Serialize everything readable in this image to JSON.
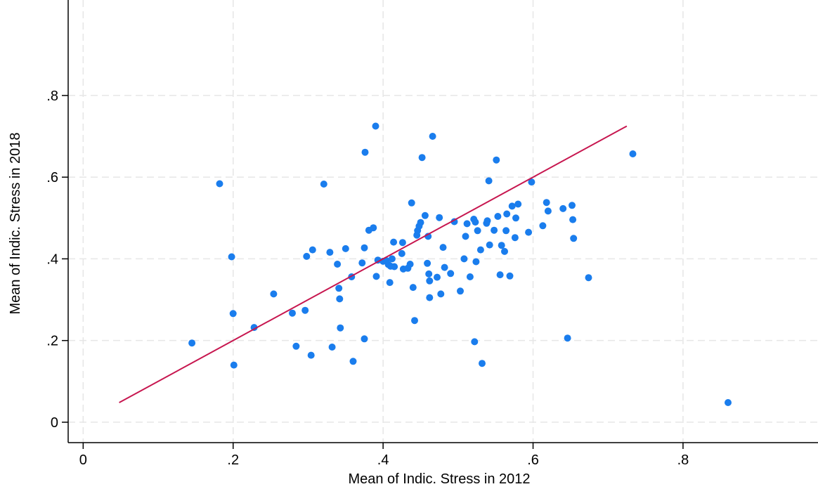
{
  "chart_data": {
    "type": "scatter",
    "title": "",
    "xlabel": "Mean of Indic. Stress in 2012",
    "ylabel": "Mean of Indic. Stress in 2018",
    "xlim": [
      -0.02,
      0.98
    ],
    "ylim": [
      -0.05,
      1.02
    ],
    "xticks": [
      0,
      0.2,
      0.4,
      0.6,
      0.8
    ],
    "xtick_labels": [
      "0",
      ".2",
      ".4",
      ".6",
      ".8"
    ],
    "yticks": [
      0,
      0.2,
      0.4,
      0.6,
      0.8
    ],
    "ytick_labels": [
      "0",
      ".2",
      ".4",
      ".6",
      ".8"
    ],
    "grid": true,
    "legend": "none",
    "colors": {
      "points": "#1a7ded",
      "fit_line": "#c7164f"
    },
    "series": [
      {
        "type": "scatter",
        "points": [
          [
            0.145,
            0.194
          ],
          [
            0.182,
            0.584
          ],
          [
            0.198,
            0.405
          ],
          [
            0.2,
            0.266
          ],
          [
            0.201,
            0.14
          ],
          [
            0.228,
            0.232
          ],
          [
            0.254,
            0.314
          ],
          [
            0.279,
            0.267
          ],
          [
            0.284,
            0.186
          ],
          [
            0.296,
            0.274
          ],
          [
            0.298,
            0.406
          ],
          [
            0.304,
            0.164
          ],
          [
            0.306,
            0.422
          ],
          [
            0.321,
            0.583
          ],
          [
            0.329,
            0.416
          ],
          [
            0.332,
            0.184
          ],
          [
            0.339,
            0.387
          ],
          [
            0.341,
            0.328
          ],
          [
            0.342,
            0.302
          ],
          [
            0.343,
            0.231
          ],
          [
            0.35,
            0.425
          ],
          [
            0.358,
            0.356
          ],
          [
            0.36,
            0.149
          ],
          [
            0.372,
            0.39
          ],
          [
            0.375,
            0.427
          ],
          [
            0.375,
            0.204
          ],
          [
            0.376,
            0.661
          ],
          [
            0.381,
            0.47
          ],
          [
            0.387,
            0.476
          ],
          [
            0.39,
            0.725
          ],
          [
            0.391,
            0.357
          ],
          [
            0.393,
            0.397
          ],
          [
            0.4,
            0.394
          ],
          [
            0.404,
            0.396
          ],
          [
            0.407,
            0.386
          ],
          [
            0.409,
            0.342
          ],
          [
            0.41,
            0.382
          ],
          [
            0.412,
            0.4
          ],
          [
            0.414,
            0.441
          ],
          [
            0.415,
            0.381
          ],
          [
            0.425,
            0.413
          ],
          [
            0.426,
            0.44
          ],
          [
            0.427,
            0.375
          ],
          [
            0.433,
            0.377
          ],
          [
            0.436,
            0.387
          ],
          [
            0.438,
            0.537
          ],
          [
            0.44,
            0.33
          ],
          [
            0.442,
            0.249
          ],
          [
            0.445,
            0.458
          ],
          [
            0.446,
            0.469
          ],
          [
            0.448,
            0.48
          ],
          [
            0.45,
            0.489
          ],
          [
            0.452,
            0.648
          ],
          [
            0.456,
            0.506
          ],
          [
            0.459,
            0.389
          ],
          [
            0.46,
            0.455
          ],
          [
            0.461,
            0.363
          ],
          [
            0.462,
            0.346
          ],
          [
            0.462,
            0.305
          ],
          [
            0.466,
            0.7
          ],
          [
            0.472,
            0.355
          ],
          [
            0.475,
            0.501
          ],
          [
            0.477,
            0.314
          ],
          [
            0.48,
            0.428
          ],
          [
            0.482,
            0.379
          ],
          [
            0.49,
            0.364
          ],
          [
            0.495,
            0.491
          ],
          [
            0.503,
            0.321
          ],
          [
            0.508,
            0.4
          ],
          [
            0.51,
            0.455
          ],
          [
            0.512,
            0.486
          ],
          [
            0.516,
            0.356
          ],
          [
            0.521,
            0.497
          ],
          [
            0.522,
            0.197
          ],
          [
            0.523,
            0.49
          ],
          [
            0.524,
            0.393
          ],
          [
            0.526,
            0.469
          ],
          [
            0.53,
            0.422
          ],
          [
            0.532,
            0.144
          ],
          [
            0.538,
            0.487
          ],
          [
            0.539,
            0.493
          ],
          [
            0.541,
            0.591
          ],
          [
            0.542,
            0.434
          ],
          [
            0.548,
            0.47
          ],
          [
            0.551,
            0.642
          ],
          [
            0.553,
            0.504
          ],
          [
            0.556,
            0.361
          ],
          [
            0.558,
            0.433
          ],
          [
            0.562,
            0.418
          ],
          [
            0.564,
            0.469
          ],
          [
            0.565,
            0.51
          ],
          [
            0.569,
            0.358
          ],
          [
            0.572,
            0.529
          ],
          [
            0.576,
            0.452
          ],
          [
            0.577,
            0.5
          ],
          [
            0.58,
            0.534
          ],
          [
            0.594,
            0.465
          ],
          [
            0.598,
            0.588
          ],
          [
            0.613,
            0.481
          ],
          [
            0.618,
            0.538
          ],
          [
            0.62,
            0.517
          ],
          [
            0.64,
            0.523
          ],
          [
            0.646,
            0.206
          ],
          [
            0.652,
            0.531
          ],
          [
            0.653,
            0.496
          ],
          [
            0.654,
            0.45
          ],
          [
            0.674,
            0.354
          ],
          [
            0.733,
            0.657
          ],
          [
            0.86,
            0.048
          ]
        ]
      },
      {
        "type": "line",
        "x": [
          0.048,
          0.725
        ],
        "y": [
          0.048,
          0.725
        ]
      }
    ]
  }
}
